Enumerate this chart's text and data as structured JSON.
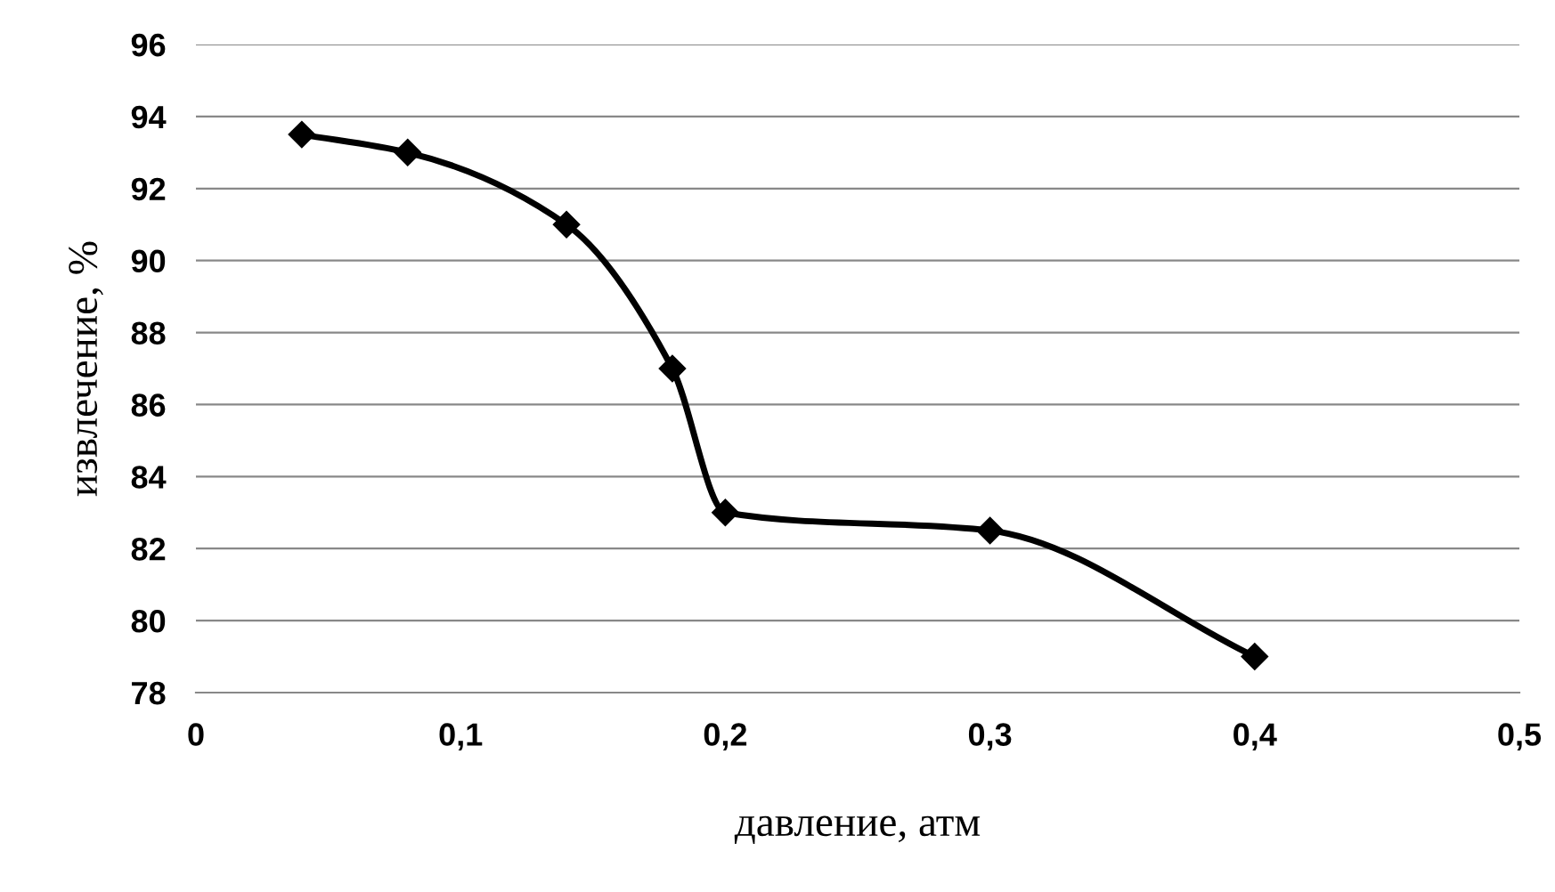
{
  "chart_data": {
    "type": "line",
    "xlabel": "давление, атм",
    "ylabel": "извлечение, %",
    "x": [
      0.04,
      0.08,
      0.14,
      0.18,
      0.2,
      0.3,
      0.4
    ],
    "series": [
      {
        "color": "#000000",
        "values": [
          93.5,
          93,
          91,
          87,
          83,
          82.5,
          79
        ]
      }
    ],
    "xlim": [
      0,
      0.5
    ],
    "xticks": [
      0,
      {
        "value": 0.1,
        "label": "0,1"
      },
      {
        "value": 0.2,
        "label": "0,2"
      },
      {
        "value": 0.3,
        "label": "0,3"
      },
      {
        "value": 0.4,
        "label": "0,4"
      },
      {
        "value": 0.5,
        "label": "0,5"
      }
    ],
    "ylim": [
      78,
      96
    ],
    "yticks": [
      78,
      80,
      82,
      84,
      86,
      88,
      90,
      92,
      94,
      96
    ],
    "grid": "y",
    "marker": "diamond",
    "line_style": "solid",
    "legend": false
  }
}
